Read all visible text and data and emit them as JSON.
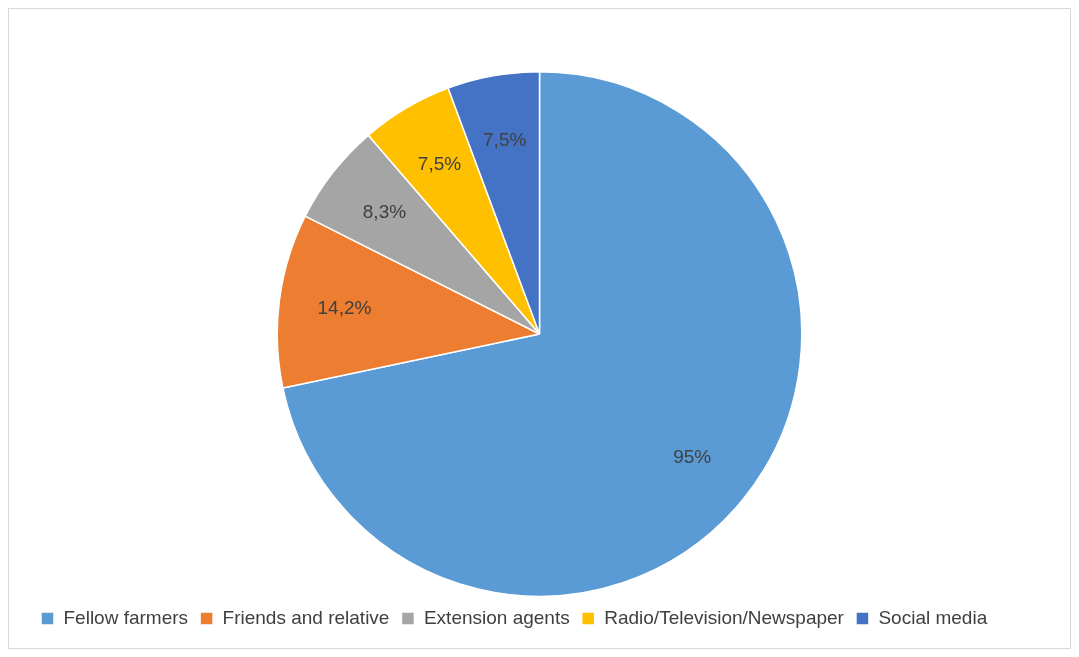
{
  "chart_data": {
    "type": "pie",
    "categories": [
      "Fellow farmers",
      "Friends and relative",
      "Extension agents",
      "Radio/Television/Newspaper",
      "Social media"
    ],
    "values": [
      95,
      14.2,
      8.3,
      7.5,
      7.5
    ],
    "colors": [
      "#5b9bd5",
      "#ed7d31",
      "#a5a5a5",
      "#ffc000",
      "#4472c4"
    ],
    "value_labels": [
      "95%",
      "14,2%",
      "8,3%",
      "7,5%",
      "7,5%"
    ],
    "legend": "bottom"
  }
}
